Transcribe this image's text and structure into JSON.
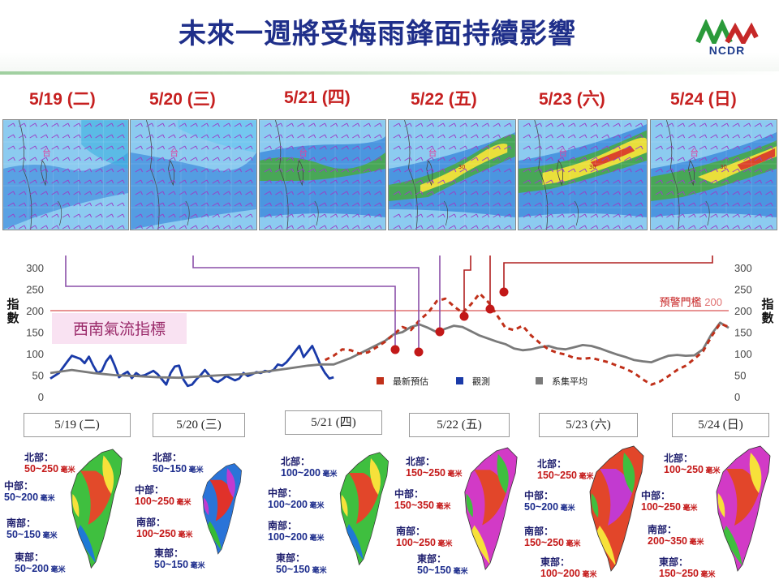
{
  "header": {
    "title": "未來一週將受梅雨鋒面持續影響",
    "logo_text": "NCDR"
  },
  "days": [
    "5/19 (二)",
    "5/20 (三)",
    "5/21 (四)",
    "5/22 (五)",
    "5/23 (六)",
    "5/24 (日)"
  ],
  "bottom_days": [
    "5/19 (二)",
    "5/20 (三)",
    "5/21 (四)",
    "5/22 (五)",
    "5/23 (六)",
    "5/24 (日)"
  ],
  "map_label": "台",
  "map_contour_labels": [
    "30",
    "30",
    "30",
    "30"
  ],
  "colors": {
    "title": "#1f2f8a",
    "date": "#c62020",
    "forecast": "#c0301a",
    "observed": "#1a3aa8",
    "ensemble": "#7a7a7a",
    "threshold": "#e07070",
    "connector_purple": "#8a4fa8",
    "connector_red": "#b02020"
  },
  "chart_data": {
    "type": "line",
    "title": "西南氣流指標",
    "ylabel_left": "指數",
    "ylabel_right": "指數",
    "yticks": [
      0,
      50,
      100,
      150,
      200,
      250,
      300
    ],
    "ylim": [
      0,
      300
    ],
    "threshold": {
      "label": "預警門檻",
      "value": 200
    },
    "legend": [
      "最新預估",
      "觀測",
      "系集平均"
    ],
    "series": [
      {
        "name": "觀測",
        "style": "solid-blue",
        "values": [
          [
            0,
            42
          ],
          [
            2,
            55
          ],
          [
            4,
            82
          ],
          [
            5,
            95
          ],
          [
            7,
            88
          ],
          [
            8,
            78
          ],
          [
            9,
            93
          ],
          [
            10,
            72
          ],
          [
            11,
            55
          ],
          [
            12,
            60
          ],
          [
            13,
            82
          ],
          [
            14,
            95
          ],
          [
            15,
            72
          ],
          [
            16,
            45
          ],
          [
            17,
            52
          ],
          [
            18,
            58
          ],
          [
            19,
            43
          ],
          [
            20,
            55
          ],
          [
            21,
            48
          ],
          [
            22,
            50
          ],
          [
            23,
            55
          ],
          [
            24,
            60
          ],
          [
            25,
            52
          ],
          [
            26,
            40
          ],
          [
            27,
            28
          ],
          [
            28,
            55
          ],
          [
            29,
            70
          ],
          [
            30,
            72
          ],
          [
            31,
            40
          ],
          [
            32,
            25
          ],
          [
            33,
            28
          ],
          [
            34,
            40
          ],
          [
            35,
            50
          ],
          [
            36,
            62
          ],
          [
            37,
            50
          ],
          [
            38,
            38
          ],
          [
            39,
            34
          ],
          [
            40,
            40
          ],
          [
            41,
            48
          ],
          [
            42,
            43
          ],
          [
            43,
            38
          ],
          [
            44,
            42
          ],
          [
            45,
            55
          ],
          [
            46,
            48
          ],
          [
            47,
            52
          ],
          [
            48,
            57
          ],
          [
            49,
            55
          ],
          [
            50,
            60
          ],
          [
            51,
            58
          ],
          [
            52,
            62
          ],
          [
            53,
            75
          ],
          [
            54,
            72
          ],
          [
            55,
            80
          ],
          [
            56,
            92
          ],
          [
            57,
            105
          ],
          [
            58,
            118
          ],
          [
            59,
            92
          ],
          [
            60,
            105
          ],
          [
            61,
            118
          ],
          [
            62,
            95
          ],
          [
            63,
            72
          ],
          [
            64,
            55
          ],
          [
            65,
            42
          ],
          [
            66,
            45
          ]
        ]
      },
      {
        "name": "系集平均",
        "style": "solid-gray",
        "values": [
          [
            0,
            55
          ],
          [
            5,
            62
          ],
          [
            10,
            55
          ],
          [
            15,
            50
          ],
          [
            20,
            48
          ],
          [
            25,
            45
          ],
          [
            30,
            44
          ],
          [
            35,
            47
          ],
          [
            40,
            50
          ],
          [
            45,
            52
          ],
          [
            50,
            58
          ],
          [
            55,
            65
          ],
          [
            60,
            72
          ],
          [
            63,
            75
          ],
          [
            66,
            75
          ],
          [
            70,
            90
          ],
          [
            73,
            105
          ],
          [
            75,
            115
          ],
          [
            78,
            130
          ],
          [
            80,
            145
          ],
          [
            82,
            150
          ],
          [
            84,
            162
          ],
          [
            86,
            168
          ],
          [
            88,
            160
          ],
          [
            90,
            150
          ],
          [
            92,
            158
          ],
          [
            94,
            165
          ],
          [
            96,
            162
          ],
          [
            98,
            152
          ],
          [
            100,
            142
          ],
          [
            102,
            135
          ],
          [
            104,
            128
          ],
          [
            106,
            122
          ],
          [
            108,
            112
          ],
          [
            110,
            108
          ],
          [
            112,
            110
          ],
          [
            114,
            115
          ],
          [
            116,
            118
          ],
          [
            118,
            112
          ],
          [
            120,
            110
          ],
          [
            122,
            115
          ],
          [
            124,
            120
          ],
          [
            126,
            118
          ],
          [
            128,
            112
          ],
          [
            130,
            105
          ],
          [
            132,
            98
          ],
          [
            134,
            92
          ],
          [
            136,
            85
          ],
          [
            138,
            82
          ],
          [
            140,
            80
          ],
          [
            142,
            88
          ],
          [
            144,
            95
          ],
          [
            146,
            97
          ],
          [
            148,
            95
          ],
          [
            150,
            96
          ],
          [
            152,
            110
          ],
          [
            154,
            145
          ],
          [
            156,
            172
          ],
          [
            158,
            160
          ]
        ]
      },
      {
        "name": "最新預估",
        "style": "dashed-red",
        "values": [
          [
            64,
            85
          ],
          [
            66,
            95
          ],
          [
            68,
            110
          ],
          [
            70,
            108
          ],
          [
            72,
            100
          ],
          [
            74,
            103
          ],
          [
            76,
            115
          ],
          [
            78,
            128
          ],
          [
            80,
            145
          ],
          [
            82,
            162
          ],
          [
            84,
            155
          ],
          [
            86,
            178
          ],
          [
            88,
            195
          ],
          [
            90,
            222
          ],
          [
            92,
            228
          ],
          [
            94,
            210
          ],
          [
            96,
            195
          ],
          [
            98,
            215
          ],
          [
            100,
            240
          ],
          [
            102,
            220
          ],
          [
            104,
            190
          ],
          [
            106,
            160
          ],
          [
            108,
            155
          ],
          [
            110,
            165
          ],
          [
            112,
            142
          ],
          [
            114,
            125
          ],
          [
            116,
            110
          ],
          [
            118,
            102
          ],
          [
            120,
            98
          ],
          [
            122,
            90
          ],
          [
            124,
            88
          ],
          [
            126,
            90
          ],
          [
            128,
            85
          ],
          [
            130,
            80
          ],
          [
            132,
            72
          ],
          [
            134,
            65
          ],
          [
            136,
            55
          ],
          [
            138,
            40
          ],
          [
            140,
            28
          ],
          [
            142,
            35
          ],
          [
            144,
            48
          ],
          [
            146,
            62
          ],
          [
            148,
            72
          ],
          [
            150,
            88
          ],
          [
            152,
            105
          ],
          [
            154,
            140
          ],
          [
            156,
            170
          ],
          [
            158,
            162
          ]
        ]
      }
    ],
    "markers": [
      {
        "x": 74,
        "y": 110
      },
      {
        "x": 80,
        "y": 100
      },
      {
        "x": 88,
        "y": 150
      },
      {
        "x": 96,
        "y": 183
      },
      {
        "x": 102,
        "y": 198
      },
      {
        "x": 105,
        "y": 240
      }
    ]
  },
  "rainfall": [
    {
      "north_label": "北部：",
      "north": "50~250",
      "central_label": "中部：",
      "central": "50~200",
      "south_label": "南部：",
      "south": "50~150",
      "east_label": "東部：",
      "east": "50~200",
      "unit": "毫米"
    },
    {
      "north_label": "北部：",
      "north": "50~150",
      "central_label": "中部：",
      "central": "100~250",
      "south_label": "南部：",
      "south": "100~250",
      "east_label": "東部：",
      "east": "50~150",
      "unit": "毫米"
    },
    {
      "north_label": "北部：",
      "north": "100~200",
      "central_label": "中部：",
      "central": "100~200",
      "south_label": "南部：",
      "south": "100~200",
      "east_label": "東部：",
      "east": "50~150",
      "unit": "毫米"
    },
    {
      "north_label": "北部：",
      "north": "150~250",
      "central_label": "中部：",
      "central": "150~350",
      "south_label": "南部：",
      "south": "100~250",
      "east_label": "東部：",
      "east": "50~150",
      "unit": "毫米"
    },
    {
      "north_label": "北部：",
      "north": "150~250",
      "central_label": "中部：",
      "central": "50~200",
      "south_label": "南部：",
      "south": "150~250",
      "east_label": "東部：",
      "east": "100~200",
      "unit": "毫米"
    },
    {
      "north_label": "北部：",
      "north": "100~250",
      "central_label": "中部：",
      "central": "100~250",
      "south_label": "南部：",
      "south": "200~350",
      "east_label": "東部：",
      "east": "150~250",
      "unit": "毫米"
    }
  ]
}
